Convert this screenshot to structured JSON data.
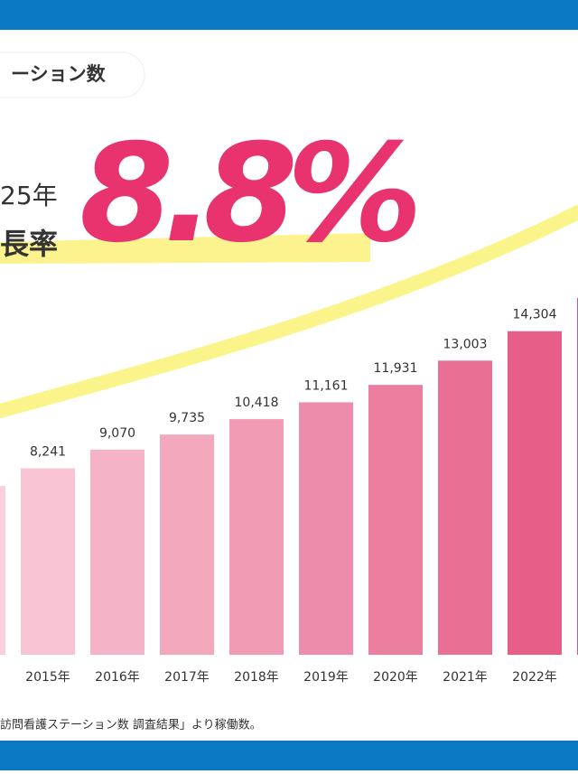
{
  "chart_data": {
    "type": "bar",
    "title": "ーション数",
    "headline_prefix": "25年",
    "headline_label": "長率",
    "headline_value": "8.8%",
    "categories": [
      null,
      "2015年",
      "2016年",
      "2017年",
      "2018年",
      "2019年",
      "2020年",
      "2021年",
      "2022年",
      null
    ],
    "values": [
      7460,
      8241,
      9070,
      9735,
      10418,
      11161,
      11931,
      13003,
      14304,
      15770
    ],
    "value_labels": [
      null,
      "8,241",
      "9,070",
      "9,735",
      "10,418",
      "11,161",
      "11,931",
      "13,003",
      "14,304",
      null
    ],
    "colors": [
      "#f9d0dc",
      "#f8c4d3",
      "#f5b3c7",
      "#f3a8be",
      "#f19bb5",
      "#ee8dab",
      "#ec7fa0",
      "#ea6f95",
      "#e75e89",
      "#e54f7f"
    ],
    "ylim": [
      0,
      15970
    ],
    "source": "訪問看護ステーション数 調査結果」より稼働数。"
  }
}
